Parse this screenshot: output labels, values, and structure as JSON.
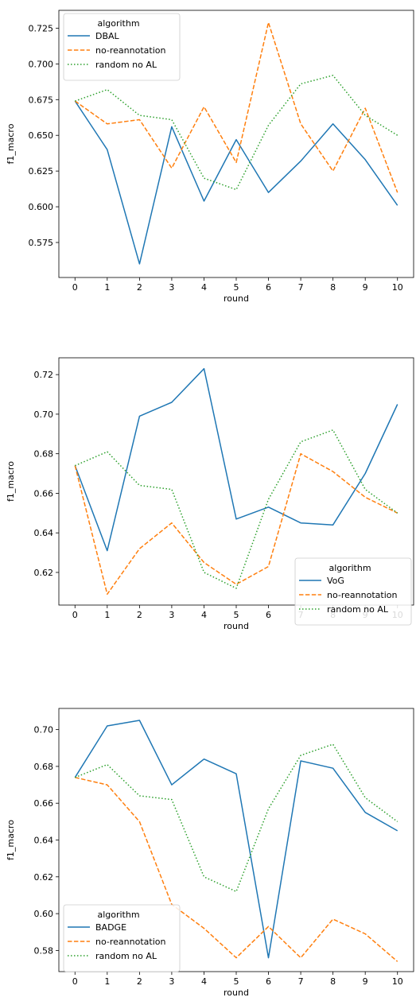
{
  "chart_data": [
    {
      "type": "line",
      "xlabel": "round",
      "ylabel": "f1_macro",
      "x": [
        0,
        1,
        2,
        3,
        4,
        5,
        6,
        7,
        8,
        9,
        10
      ],
      "xticks": [
        "0",
        "1",
        "2",
        "3",
        "4",
        "5",
        "6",
        "7",
        "8",
        "9",
        "10"
      ],
      "yticks": [
        "0.575",
        "0.600",
        "0.625",
        "0.650",
        "0.675",
        "0.700",
        "0.725"
      ],
      "ytick_values": [
        0.575,
        0.6,
        0.625,
        0.65,
        0.675,
        0.7,
        0.725
      ],
      "ylim": [
        0.5505,
        0.7375
      ],
      "xlim": [
        -0.5,
        10.5
      ],
      "legend": {
        "title": "algorithm",
        "placement": "upper left"
      },
      "series": [
        {
          "name": "DBAL",
          "color": "#1f77b4",
          "dash": "solid",
          "values": [
            0.674,
            0.64,
            0.56,
            0.656,
            0.604,
            0.647,
            0.61,
            0.632,
            0.658,
            0.633,
            0.601
          ]
        },
        {
          "name": "no-reannotation",
          "color": "#ff7f0e",
          "dash": "dashed",
          "values": [
            0.674,
            0.658,
            0.661,
            0.627,
            0.67,
            0.631,
            0.729,
            0.658,
            0.625,
            0.669,
            0.61
          ]
        },
        {
          "name": "random no AL",
          "color": "#2ca02c",
          "dash": "dotted",
          "values": [
            0.674,
            0.682,
            0.664,
            0.661,
            0.62,
            0.612,
            0.657,
            0.686,
            0.692,
            0.664,
            0.65
          ]
        }
      ]
    },
    {
      "type": "line",
      "xlabel": "round",
      "ylabel": "f1_macro",
      "x": [
        0,
        1,
        2,
        3,
        4,
        5,
        6,
        7,
        8,
        9,
        10
      ],
      "xticks": [
        "0",
        "1",
        "2",
        "3",
        "4",
        "5",
        "6",
        "7",
        "8",
        "9",
        "10"
      ],
      "yticks": [
        "0.62",
        "0.64",
        "0.66",
        "0.68",
        "0.70",
        "0.72"
      ],
      "ytick_values": [
        0.62,
        0.64,
        0.66,
        0.68,
        0.7,
        0.72
      ],
      "ylim": [
        0.6035,
        0.7285
      ],
      "xlim": [
        -0.5,
        10.5
      ],
      "legend": {
        "title": "algorithm",
        "placement": "lower right"
      },
      "series": [
        {
          "name": "VoG",
          "color": "#1f77b4",
          "dash": "solid",
          "values": [
            0.674,
            0.631,
            0.699,
            0.706,
            0.723,
            0.647,
            0.653,
            0.645,
            0.644,
            0.67,
            0.705
          ]
        },
        {
          "name": "no-reannotation",
          "color": "#ff7f0e",
          "dash": "dashed",
          "values": [
            0.674,
            0.609,
            0.632,
            0.645,
            0.625,
            0.614,
            0.623,
            0.68,
            0.671,
            0.658,
            0.65
          ]
        },
        {
          "name": "random no AL",
          "color": "#2ca02c",
          "dash": "dotted",
          "values": [
            0.674,
            0.681,
            0.664,
            0.662,
            0.62,
            0.612,
            0.657,
            0.686,
            0.692,
            0.662,
            0.65
          ]
        }
      ]
    },
    {
      "type": "line",
      "xlabel": "round",
      "ylabel": "f1_macro",
      "x": [
        0,
        1,
        2,
        3,
        4,
        5,
        6,
        7,
        8,
        9,
        10
      ],
      "xticks": [
        "0",
        "1",
        "2",
        "3",
        "4",
        "5",
        "6",
        "7",
        "8",
        "9",
        "10"
      ],
      "yticks": [
        "0.58",
        "0.60",
        "0.62",
        "0.64",
        "0.66",
        "0.68",
        "0.70"
      ],
      "ytick_values": [
        0.58,
        0.6,
        0.62,
        0.64,
        0.66,
        0.68,
        0.7
      ],
      "ylim": [
        0.5685,
        0.7115
      ],
      "xlim": [
        -0.5,
        10.5
      ],
      "legend": {
        "title": "algorithm",
        "placement": "lower left"
      },
      "series": [
        {
          "name": "BADGE",
          "color": "#1f77b4",
          "dash": "solid",
          "values": [
            0.674,
            0.702,
            0.705,
            0.67,
            0.684,
            0.676,
            0.576,
            0.683,
            0.679,
            0.655,
            0.645
          ]
        },
        {
          "name": "no-reannotation",
          "color": "#ff7f0e",
          "dash": "dashed",
          "values": [
            0.674,
            0.67,
            0.65,
            0.605,
            0.592,
            0.576,
            0.593,
            0.576,
            0.597,
            0.589,
            0.574
          ]
        },
        {
          "name": "random no AL",
          "color": "#2ca02c",
          "dash": "dotted",
          "values": [
            0.674,
            0.681,
            0.664,
            0.662,
            0.62,
            0.612,
            0.657,
            0.686,
            0.692,
            0.663,
            0.65
          ]
        }
      ]
    }
  ]
}
